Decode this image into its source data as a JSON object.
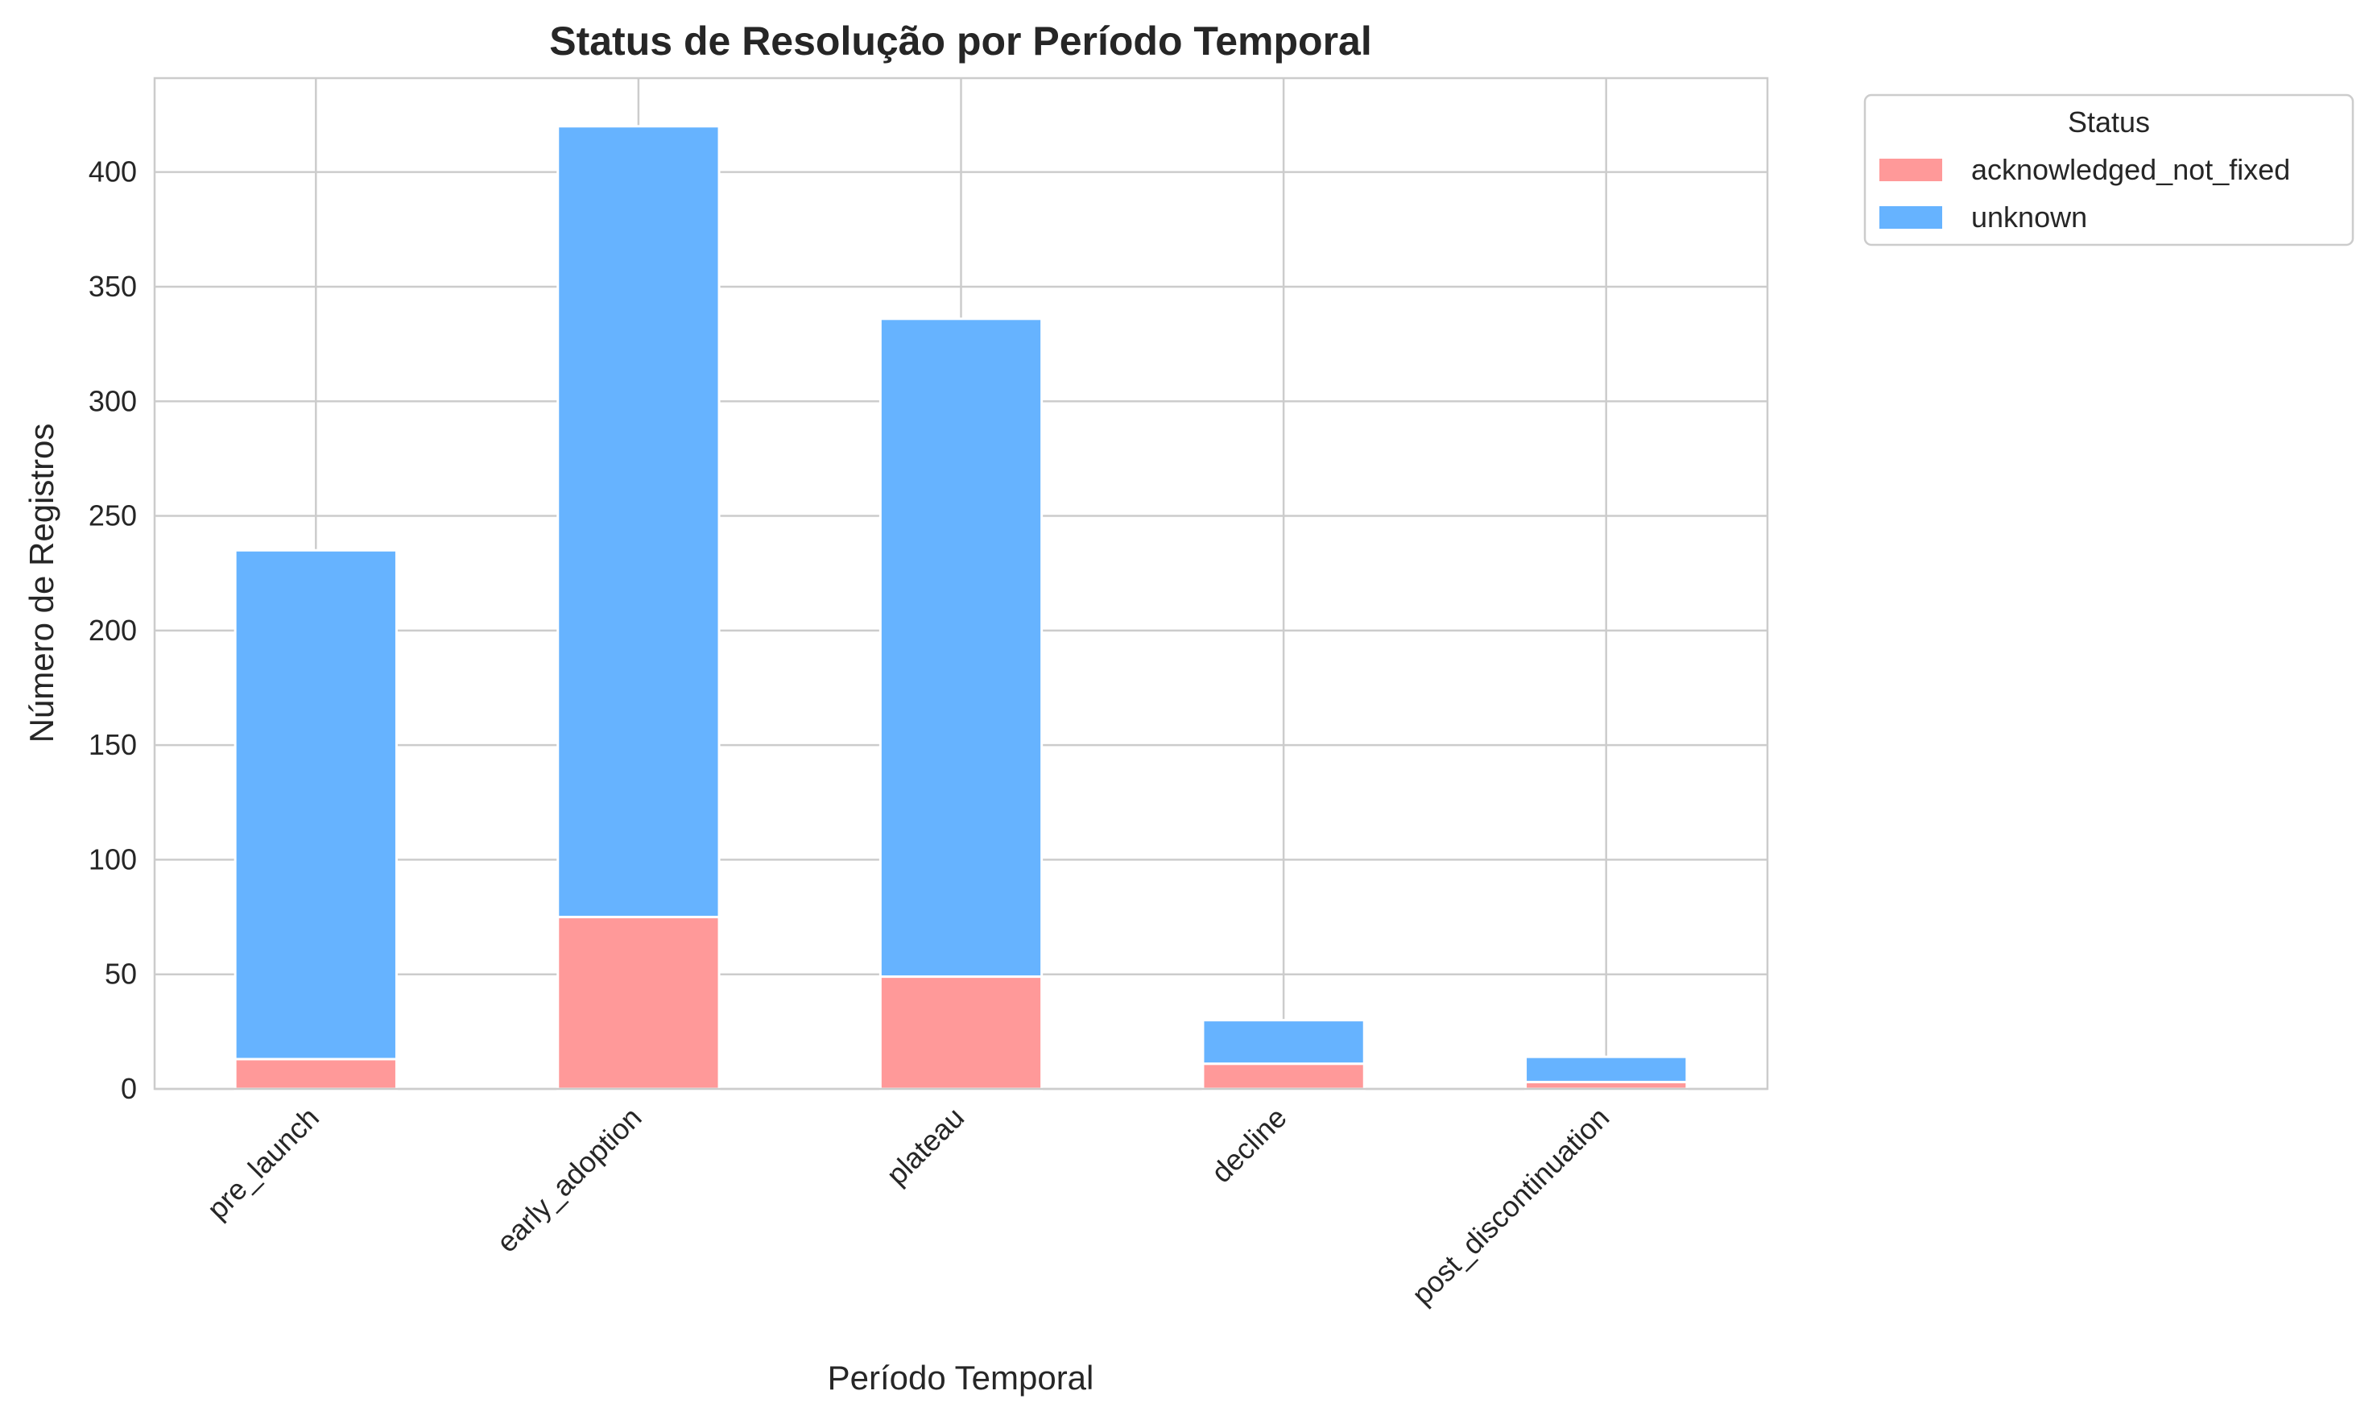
{
  "chart_data": {
    "type": "bar",
    "stacked": true,
    "title": "Status de Resolução por Período Temporal",
    "xlabel": "Período Temporal",
    "ylabel": "Número de Registros",
    "categories": [
      "pre_launch",
      "early_adoption",
      "plateau",
      "decline",
      "post_discontinuation"
    ],
    "series": [
      {
        "name": "acknowledged_not_fixed",
        "color": "#ff9999",
        "values": [
          13,
          75,
          49,
          11,
          3
        ]
      },
      {
        "name": "unknown",
        "color": "#66b3ff",
        "values": [
          222,
          345,
          287,
          19,
          11
        ]
      }
    ],
    "ylim": [
      0,
      441
    ],
    "yticks": [
      0,
      50,
      100,
      150,
      200,
      250,
      300,
      350,
      400
    ],
    "grid": true,
    "legend": {
      "title": "Status",
      "placement": "outside top-right"
    }
  }
}
